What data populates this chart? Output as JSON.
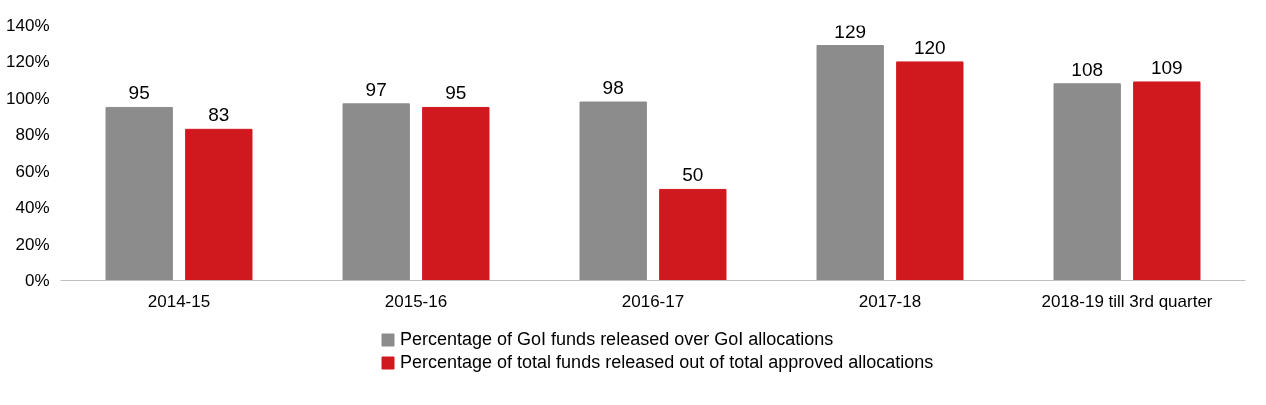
{
  "chart_data": {
    "type": "bar",
    "categories": [
      "2014-15",
      "2015-16",
      "2016-17",
      "2017-18",
      "2018-19 till 3rd quarter"
    ],
    "series": [
      {
        "name": "Percentage of GoI funds released over GoI allocations",
        "color": "#8c8c8c",
        "values": [
          95,
          97,
          98,
          129,
          108
        ]
      },
      {
        "name": "Percentage of total funds released out of total approved allocations",
        "color": "#d0191f",
        "values": [
          83,
          95,
          50,
          120,
          109
        ]
      }
    ],
    "ylim": [
      0,
      140
    ],
    "yticks": [
      {
        "value": 0,
        "label": "0%"
      },
      {
        "value": 20,
        "label": "20%"
      },
      {
        "value": 40,
        "label": "40%"
      },
      {
        "value": 60,
        "label": "60%"
      },
      {
        "value": 80,
        "label": "80%"
      },
      {
        "value": 100,
        "label": "100%"
      },
      {
        "value": 120,
        "label": "120%"
      },
      {
        "value": 140,
        "label": "140%"
      }
    ],
    "data_labels": true,
    "legend": "bottom",
    "grid": false
  }
}
